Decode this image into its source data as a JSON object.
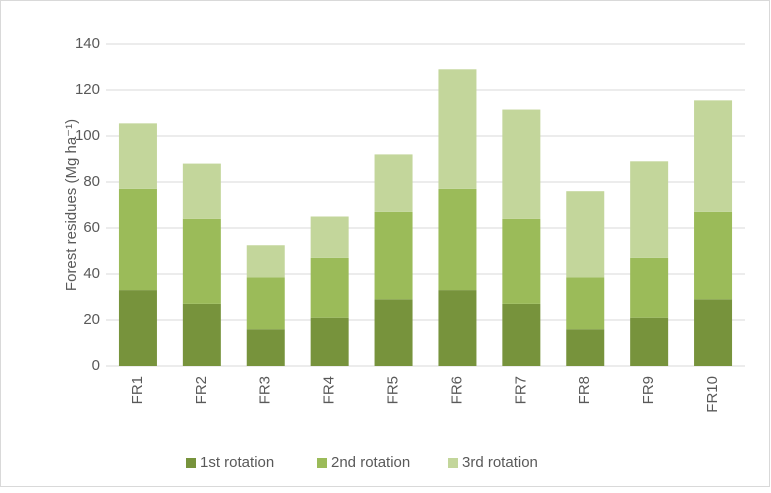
{
  "chart_data": {
    "type": "stacked_bar",
    "y_label": "Forest residues (Mg ha⁻¹)",
    "categories": [
      "FR1",
      "FR2",
      "FR3",
      "FR4",
      "FR5",
      "FR6",
      "FR7",
      "FR8",
      "FR9",
      "FR10"
    ],
    "series": [
      {
        "name": "1st rotation",
        "color": "#77933c",
        "values": [
          33,
          27,
          16,
          21,
          29,
          33,
          27,
          16,
          21,
          29
        ]
      },
      {
        "name": "2nd rotation",
        "color": "#9bbb59",
        "values": [
          44,
          37,
          22.5,
          26,
          38,
          44,
          37,
          22.5,
          26,
          38
        ]
      },
      {
        "name": "3rd rotation",
        "color": "#c3d69b",
        "values": [
          28.5,
          24,
          14,
          18,
          25,
          52,
          47.5,
          37.5,
          42,
          48.5
        ]
      }
    ],
    "ylim": [
      0,
      140
    ],
    "yticks": [
      0,
      20,
      40,
      60,
      80,
      100,
      120,
      140
    ],
    "grid": true,
    "legend": "bottom"
  }
}
